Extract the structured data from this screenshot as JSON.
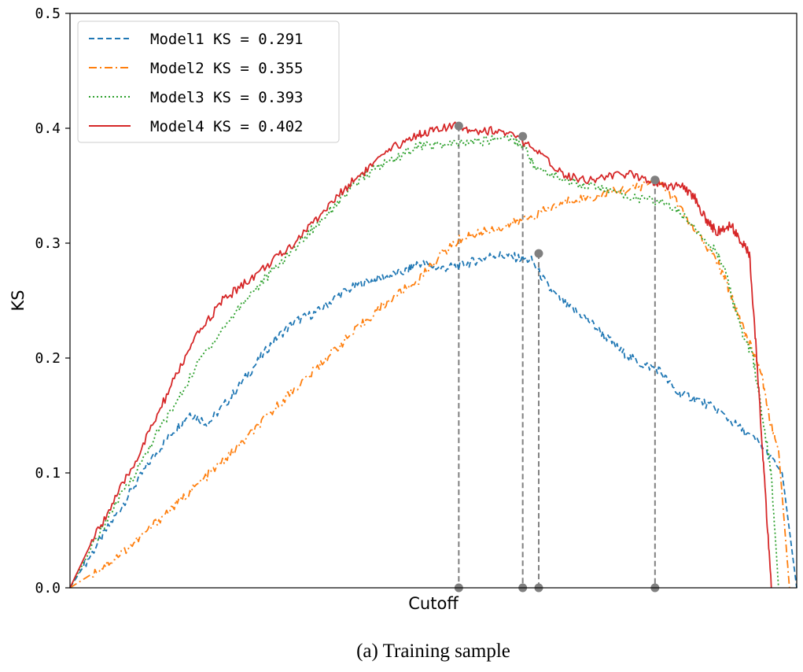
{
  "chart_data": {
    "type": "line",
    "title": "",
    "xlabel": "Cutoff",
    "ylabel": "KS",
    "caption": "(a) Training sample",
    "xlim": [
      0,
      1
    ],
    "ylim": [
      0,
      0.5
    ],
    "yticks": [
      "0.0",
      "0.1",
      "0.2",
      "0.3",
      "0.4",
      "0.5"
    ],
    "grid": false,
    "legend_position": "top-left",
    "series": [
      {
        "name": "Model1 KS = 0.291",
        "color": "#1f77b4",
        "style": "dashed",
        "points": [
          [
            0.0,
            0.0
          ],
          [
            0.02,
            0.02
          ],
          [
            0.05,
            0.05
          ],
          [
            0.08,
            0.08
          ],
          [
            0.11,
            0.11
          ],
          [
            0.14,
            0.135
          ],
          [
            0.165,
            0.152
          ],
          [
            0.19,
            0.143
          ],
          [
            0.22,
            0.165
          ],
          [
            0.25,
            0.19
          ],
          [
            0.28,
            0.215
          ],
          [
            0.31,
            0.232
          ],
          [
            0.34,
            0.24
          ],
          [
            0.37,
            0.255
          ],
          [
            0.4,
            0.265
          ],
          [
            0.43,
            0.27
          ],
          [
            0.46,
            0.275
          ],
          [
            0.48,
            0.283
          ],
          [
            0.51,
            0.278
          ],
          [
            0.535,
            0.28
          ],
          [
            0.56,
            0.285
          ],
          [
            0.585,
            0.29
          ],
          [
            0.61,
            0.288
          ],
          [
            0.635,
            0.285
          ],
          [
            0.66,
            0.26
          ],
          [
            0.685,
            0.245
          ],
          [
            0.71,
            0.235
          ],
          [
            0.735,
            0.22
          ],
          [
            0.76,
            0.205
          ],
          [
            0.785,
            0.195
          ],
          [
            0.81,
            0.19
          ],
          [
            0.835,
            0.17
          ],
          [
            0.86,
            0.165
          ],
          [
            0.89,
            0.155
          ],
          [
            0.92,
            0.14
          ],
          [
            0.95,
            0.125
          ],
          [
            0.98,
            0.1
          ],
          [
            1.0,
            0.0
          ]
        ]
      },
      {
        "name": "Model2 KS = 0.355",
        "color": "#ff7f0e",
        "style": "dashdot",
        "points": [
          [
            0.0,
            0.0
          ],
          [
            0.03,
            0.012
          ],
          [
            0.06,
            0.025
          ],
          [
            0.09,
            0.04
          ],
          [
            0.12,
            0.058
          ],
          [
            0.15,
            0.075
          ],
          [
            0.18,
            0.092
          ],
          [
            0.21,
            0.11
          ],
          [
            0.24,
            0.128
          ],
          [
            0.27,
            0.148
          ],
          [
            0.3,
            0.168
          ],
          [
            0.33,
            0.185
          ],
          [
            0.36,
            0.205
          ],
          [
            0.39,
            0.222
          ],
          [
            0.42,
            0.24
          ],
          [
            0.45,
            0.255
          ],
          [
            0.48,
            0.268
          ],
          [
            0.51,
            0.29
          ],
          [
            0.54,
            0.305
          ],
          [
            0.57,
            0.31
          ],
          [
            0.6,
            0.315
          ],
          [
            0.63,
            0.322
          ],
          [
            0.66,
            0.33
          ],
          [
            0.69,
            0.338
          ],
          [
            0.72,
            0.34
          ],
          [
            0.75,
            0.345
          ],
          [
            0.78,
            0.348
          ],
          [
            0.805,
            0.355
          ],
          [
            0.83,
            0.34
          ],
          [
            0.86,
            0.31
          ],
          [
            0.89,
            0.285
          ],
          [
            0.91,
            0.255
          ],
          [
            0.93,
            0.22
          ],
          [
            0.95,
            0.19
          ],
          [
            0.965,
            0.14
          ],
          [
            0.975,
            0.12
          ],
          [
            0.985,
            0.04
          ],
          [
            0.99,
            0.0
          ]
        ]
      },
      {
        "name": "Model3 KS = 0.393",
        "color": "#2ca02c",
        "style": "dotted",
        "points": [
          [
            0.0,
            0.0
          ],
          [
            0.03,
            0.035
          ],
          [
            0.06,
            0.07
          ],
          [
            0.09,
            0.1
          ],
          [
            0.12,
            0.135
          ],
          [
            0.15,
            0.165
          ],
          [
            0.18,
            0.2
          ],
          [
            0.21,
            0.225
          ],
          [
            0.24,
            0.25
          ],
          [
            0.27,
            0.27
          ],
          [
            0.3,
            0.29
          ],
          [
            0.33,
            0.31
          ],
          [
            0.36,
            0.33
          ],
          [
            0.39,
            0.35
          ],
          [
            0.42,
            0.365
          ],
          [
            0.45,
            0.375
          ],
          [
            0.48,
            0.385
          ],
          [
            0.51,
            0.385
          ],
          [
            0.54,
            0.387
          ],
          [
            0.57,
            0.389
          ],
          [
            0.6,
            0.393
          ],
          [
            0.625,
            0.385
          ],
          [
            0.64,
            0.365
          ],
          [
            0.67,
            0.358
          ],
          [
            0.7,
            0.352
          ],
          [
            0.73,
            0.348
          ],
          [
            0.76,
            0.342
          ],
          [
            0.79,
            0.338
          ],
          [
            0.82,
            0.335
          ],
          [
            0.85,
            0.32
          ],
          [
            0.88,
            0.3
          ],
          [
            0.9,
            0.28
          ],
          [
            0.92,
            0.23
          ],
          [
            0.94,
            0.2
          ],
          [
            0.955,
            0.14
          ],
          [
            0.965,
            0.1
          ],
          [
            0.975,
            0.0
          ]
        ]
      },
      {
        "name": "Model4 KS = 0.402",
        "color": "#d62728",
        "style": "solid",
        "points": [
          [
            0.0,
            0.0
          ],
          [
            0.03,
            0.04
          ],
          [
            0.06,
            0.075
          ],
          [
            0.09,
            0.11
          ],
          [
            0.12,
            0.15
          ],
          [
            0.15,
            0.19
          ],
          [
            0.18,
            0.225
          ],
          [
            0.21,
            0.25
          ],
          [
            0.24,
            0.265
          ],
          [
            0.27,
            0.28
          ],
          [
            0.3,
            0.295
          ],
          [
            0.33,
            0.315
          ],
          [
            0.36,
            0.335
          ],
          [
            0.39,
            0.355
          ],
          [
            0.42,
            0.37
          ],
          [
            0.45,
            0.385
          ],
          [
            0.48,
            0.395
          ],
          [
            0.5,
            0.398
          ],
          [
            0.535,
            0.402
          ],
          [
            0.56,
            0.398
          ],
          [
            0.59,
            0.398
          ],
          [
            0.62,
            0.39
          ],
          [
            0.65,
            0.375
          ],
          [
            0.68,
            0.36
          ],
          [
            0.71,
            0.355
          ],
          [
            0.74,
            0.358
          ],
          [
            0.77,
            0.36
          ],
          [
            0.8,
            0.355
          ],
          [
            0.82,
            0.35
          ],
          [
            0.84,
            0.35
          ],
          [
            0.86,
            0.34
          ],
          [
            0.875,
            0.32
          ],
          [
            0.89,
            0.31
          ],
          [
            0.91,
            0.315
          ],
          [
            0.925,
            0.3
          ],
          [
            0.935,
            0.29
          ],
          [
            0.945,
            0.2
          ],
          [
            0.955,
            0.1
          ],
          [
            0.965,
            0.0
          ]
        ]
      }
    ],
    "markers": [
      {
        "x": 0.535,
        "y": 0.402
      },
      {
        "x": 0.623,
        "y": 0.393
      },
      {
        "x": 0.645,
        "y": 0.291
      },
      {
        "x": 0.805,
        "y": 0.355
      }
    ]
  }
}
